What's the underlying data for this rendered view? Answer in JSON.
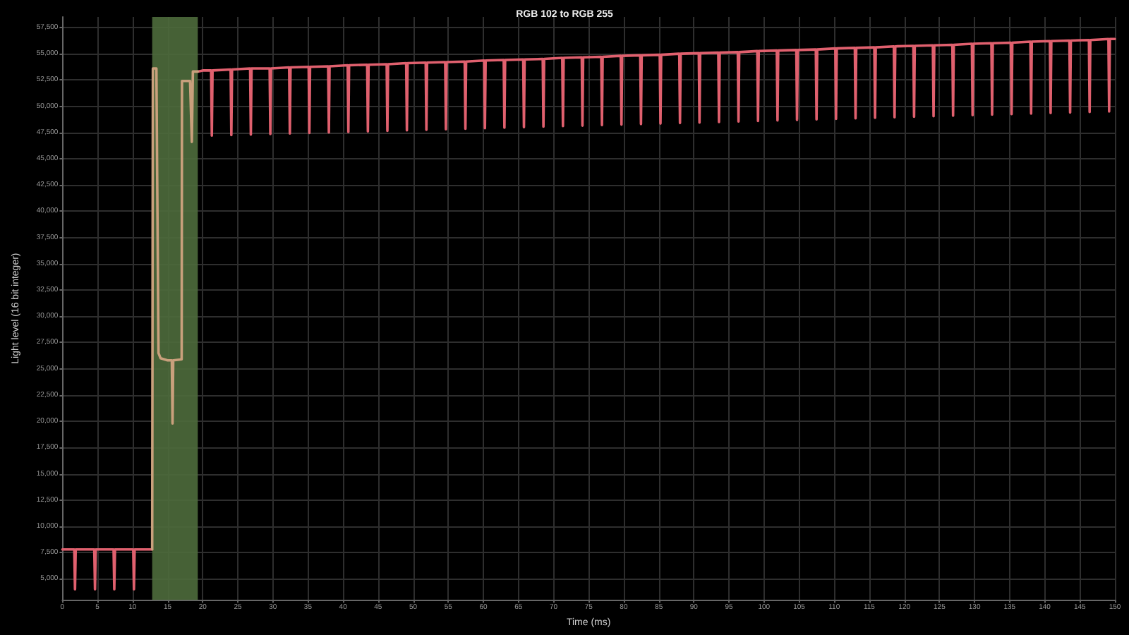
{
  "chart_data": {
    "type": "line",
    "title": "RGB 102 to RGB 255",
    "xlabel": "Time (ms)",
    "ylabel": "Light level (16 bit integer)",
    "grid": true,
    "marker": "none",
    "line_style": "solid",
    "xlim": [
      0,
      150
    ],
    "xticks": [
      0,
      5,
      10,
      15,
      20,
      25,
      30,
      35,
      40,
      45,
      50,
      55,
      60,
      65,
      70,
      75,
      80,
      85,
      90,
      95,
      100,
      105,
      110,
      115,
      120,
      125,
      130,
      135,
      140,
      145,
      150
    ],
    "ylim": [
      3000,
      58500
    ],
    "yticks": [
      {
        "value": 5000,
        "label": "5,000"
      },
      {
        "value": 7500,
        "label": "7,500"
      },
      {
        "value": 10000,
        "label": "10,000"
      },
      {
        "value": 12500,
        "label": "12,500"
      },
      {
        "value": 15000,
        "label": "15,000"
      },
      {
        "value": 17500,
        "label": "17,500"
      },
      {
        "value": 20000,
        "label": "20,000"
      },
      {
        "value": 22500,
        "label": "22,500"
      },
      {
        "value": 25000,
        "label": "25,000"
      },
      {
        "value": 27500,
        "label": "27,500"
      },
      {
        "value": 30000,
        "label": "30,000"
      },
      {
        "value": 32500,
        "label": "32,500"
      },
      {
        "value": 35000,
        "label": "35,000"
      },
      {
        "value": 37500,
        "label": "37,500"
      },
      {
        "value": 40000,
        "label": "40,000"
      },
      {
        "value": 42500,
        "label": "42,500"
      },
      {
        "value": 45000,
        "label": "45,000"
      },
      {
        "value": 47500,
        "label": "47,500"
      },
      {
        "value": 50000,
        "label": "50,000"
      },
      {
        "value": 52500,
        "label": "52,500"
      },
      {
        "value": 55000,
        "label": "55,000"
      },
      {
        "value": 57500,
        "label": "57,500"
      }
    ],
    "bands": [
      {
        "axis": "x",
        "from": 12.8,
        "to": 19.3,
        "color": "#4e6b3c"
      }
    ],
    "series": [
      {
        "color": "#e0606e",
        "x": [
          0,
          1.7,
          1.8,
          1.9,
          4.55,
          4.65,
          4.75,
          7.3,
          7.4,
          7.5,
          10.1,
          10.2,
          10.3,
          12.8,
          16,
          19.3,
          20,
          21.2,
          21.3,
          21.4,
          23.98,
          24.08,
          24.18,
          26.76,
          26.86,
          26.96,
          29.54,
          29.64,
          29.74,
          32.32,
          32.42,
          32.52,
          35.1,
          35.2,
          35.3,
          37.88,
          37.98,
          38.08,
          40.66,
          40.76,
          40.86,
          43.44,
          43.54,
          43.64,
          46.22,
          46.32,
          46.42,
          49.0,
          49.1,
          49.2,
          51.78,
          51.88,
          51.98,
          54.56,
          54.66,
          54.76,
          57.34,
          57.44,
          57.54,
          60.12,
          60.22,
          60.32,
          62.9,
          63.0,
          63.1,
          65.68,
          65.78,
          65.88,
          68.46,
          68.56,
          68.66,
          71.24,
          71.34,
          71.44,
          74.02,
          74.12,
          74.22,
          76.8,
          76.9,
          77.0,
          79.58,
          79.68,
          79.78,
          82.36,
          82.46,
          82.56,
          85.14,
          85.24,
          85.34,
          87.92,
          88.02,
          88.12,
          90.7,
          90.8,
          90.9,
          93.48,
          93.58,
          93.68,
          96.26,
          96.36,
          96.46,
          99.04,
          99.14,
          99.24,
          101.82,
          101.92,
          102.02,
          104.6,
          104.7,
          104.8,
          107.38,
          107.48,
          107.58,
          110.16,
          110.26,
          110.36,
          112.94,
          113.04,
          113.14,
          115.72,
          115.82,
          115.92,
          118.5,
          118.6,
          118.7,
          121.28,
          121.38,
          121.48,
          124.06,
          124.16,
          124.26,
          126.84,
          126.94,
          127.04,
          129.62,
          129.72,
          129.82,
          132.4,
          132.5,
          132.6,
          135.18,
          135.28,
          135.38,
          137.96,
          138.06,
          138.16,
          140.74,
          140.84,
          140.94,
          143.52,
          143.62,
          143.72,
          146.3,
          146.4,
          146.5,
          149.08,
          149.18,
          149.28,
          150
        ],
        "values": [
          7800,
          7800,
          4000,
          7800,
          7800,
          4000,
          7800,
          7800,
          4000,
          7800,
          7800,
          4000,
          7800,
          7800,
          null,
          53300,
          53400,
          53400,
          47200,
          53400,
          53500,
          47250,
          53500,
          53600,
          47300,
          53600,
          53600,
          47350,
          53600,
          53700,
          47400,
          53700,
          53750,
          47450,
          53750,
          53800,
          47500,
          53800,
          53900,
          47550,
          53900,
          53950,
          47600,
          53950,
          54000,
          47650,
          54000,
          54100,
          47700,
          54100,
          54150,
          47750,
          54150,
          54200,
          47800,
          54200,
          54250,
          47850,
          54250,
          54350,
          47900,
          54350,
          54400,
          47950,
          54400,
          54450,
          48000,
          54450,
          54500,
          48050,
          54500,
          54600,
          48100,
          54600,
          54650,
          48150,
          54650,
          54700,
          48200,
          54700,
          54800,
          48250,
          54800,
          54850,
          48300,
          54850,
          54900,
          48350,
          54900,
          55000,
          48400,
          55000,
          55050,
          48450,
          55050,
          55100,
          48500,
          55100,
          55150,
          48550,
          55150,
          55250,
          48600,
          55250,
          55300,
          48650,
          55300,
          55350,
          48700,
          55350,
          55400,
          48750,
          55400,
          55500,
          48800,
          55500,
          55550,
          48850,
          55550,
          55600,
          48900,
          55600,
          55700,
          48950,
          55700,
          55750,
          49000,
          55750,
          55800,
          49050,
          55800,
          55850,
          49100,
          55850,
          55950,
          49150,
          55950,
          56000,
          49200,
          56000,
          56050,
          49250,
          56050,
          56150,
          49300,
          56150,
          56200,
          49350,
          56200,
          56250,
          49400,
          56250,
          56300,
          49450,
          56300,
          56400,
          49500,
          56400,
          56400
        ]
      },
      {
        "color": "#c9a07c",
        "x": [
          12.8,
          12.9,
          13.4,
          13.7,
          14.0,
          15.0,
          15.6,
          15.7,
          15.8,
          17.0,
          17.05,
          18.2,
          18.45,
          18.6,
          19.3
        ],
        "values": [
          7800,
          53600,
          53600,
          26500,
          26000,
          25800,
          25800,
          19800,
          25800,
          25900,
          52400,
          52400,
          46600,
          53300,
          53300
        ]
      }
    ]
  }
}
